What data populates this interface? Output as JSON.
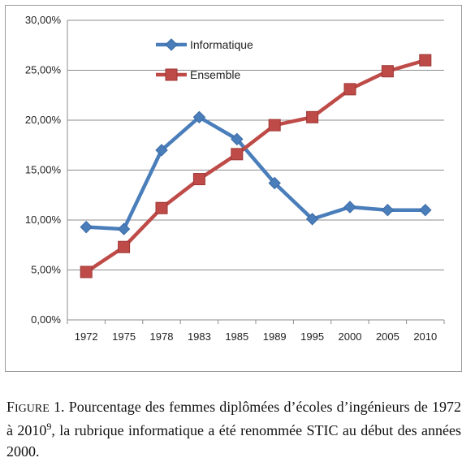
{
  "chart_data": {
    "type": "line",
    "categories": [
      "1972",
      "1975",
      "1978",
      "1983",
      "1985",
      "1989",
      "1995",
      "2000",
      "2005",
      "2010"
    ],
    "series": [
      {
        "name": "Informatique",
        "color": "#4a7ebb",
        "marker": "diamond",
        "values": [
          9.3,
          9.1,
          17.0,
          20.3,
          18.1,
          13.7,
          10.1,
          11.3,
          11.0,
          11.0
        ]
      },
      {
        "name": "Ensemble",
        "color": "#be4b48",
        "marker": "square",
        "values": [
          4.8,
          7.3,
          11.2,
          14.1,
          16.6,
          19.5,
          20.3,
          23.1,
          24.9,
          26.0
        ]
      }
    ],
    "ylim": [
      0,
      30
    ],
    "yticks": [
      "0,00%",
      "5,00%",
      "10,00%",
      "15,00%",
      "20,00%",
      "25,00%",
      "30,00%"
    ],
    "grid": true,
    "legend_position": "top-left"
  },
  "caption": {
    "label_first": "F",
    "label_rest": "IGURE",
    "number": "1.",
    "text_before_note": "Pourcentage des femmes diplômées d’écoles d’ingénieurs de 1972 à 2010",
    "footnote": "9",
    "text_after_note": ", la rubrique informatique a été renommée STIC au début des années 2000."
  }
}
